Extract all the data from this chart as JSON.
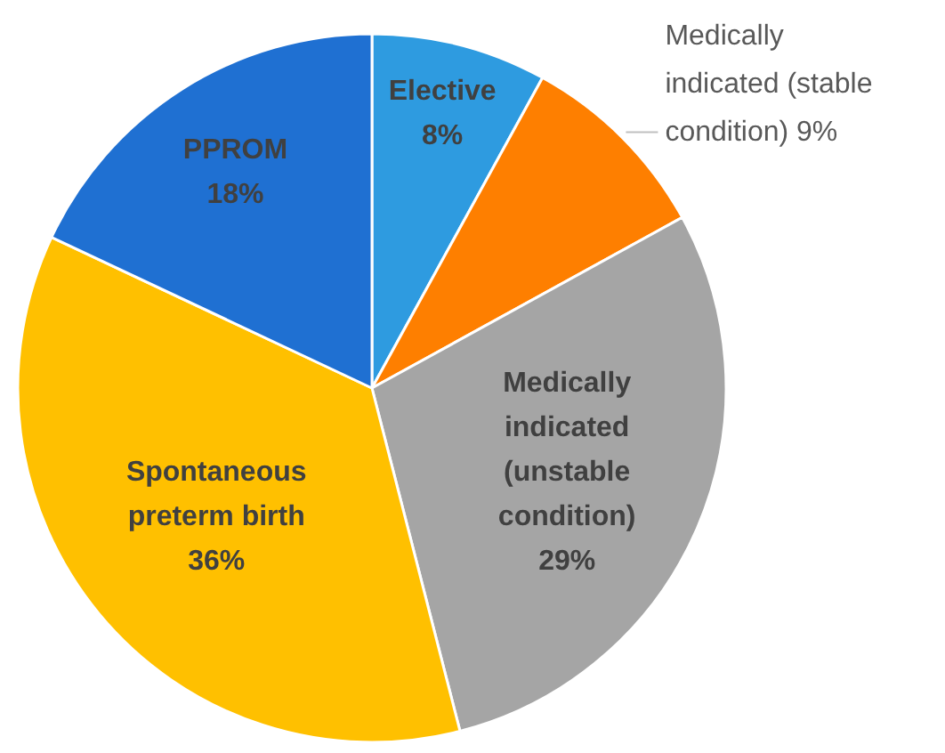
{
  "chart_data": {
    "type": "pie",
    "categories": [
      "Elective",
      "Medically indicated (stable condition)",
      "Medically indicated (unstable condition)",
      "Spontaneous preterm birth",
      "PPROM"
    ],
    "values": [
      8,
      9,
      29,
      36,
      18
    ],
    "colors": [
      "#2e9be0",
      "#fe7f00",
      "#a5a5a5",
      "#ffc000",
      "#1f70d2"
    ],
    "value_labels": [
      "8%",
      "9%",
      "29%",
      "36%",
      "18%"
    ]
  }
}
